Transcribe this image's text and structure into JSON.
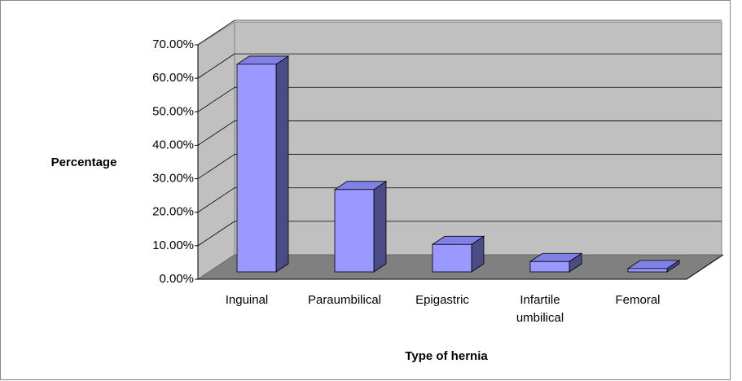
{
  "chart_data": {
    "type": "bar3d",
    "xlabel": "Type of hernia",
    "ylabel": "Percentage",
    "categories": [
      "Inguinal",
      "Paraumbilical",
      "Epigastric",
      "Infartile umbilical",
      "Femoral"
    ],
    "values": [
      62,
      24.6,
      8.2,
      3.1,
      1
    ],
    "color": "#9999ff",
    "ylim": [
      0,
      70
    ],
    "yticks": [
      {
        "value": 0,
        "label": "0.00%"
      },
      {
        "value": 10,
        "label": "10.00%"
      },
      {
        "value": 20,
        "label": "20.00%"
      },
      {
        "value": 30,
        "label": "30.00%"
      },
      {
        "value": 40,
        "label": "40.00%"
      },
      {
        "value": 50,
        "label": "50.00%"
      },
      {
        "value": 60,
        "label": "60.00%"
      },
      {
        "value": 70,
        "label": "70.00%"
      }
    ],
    "grid": true
  }
}
